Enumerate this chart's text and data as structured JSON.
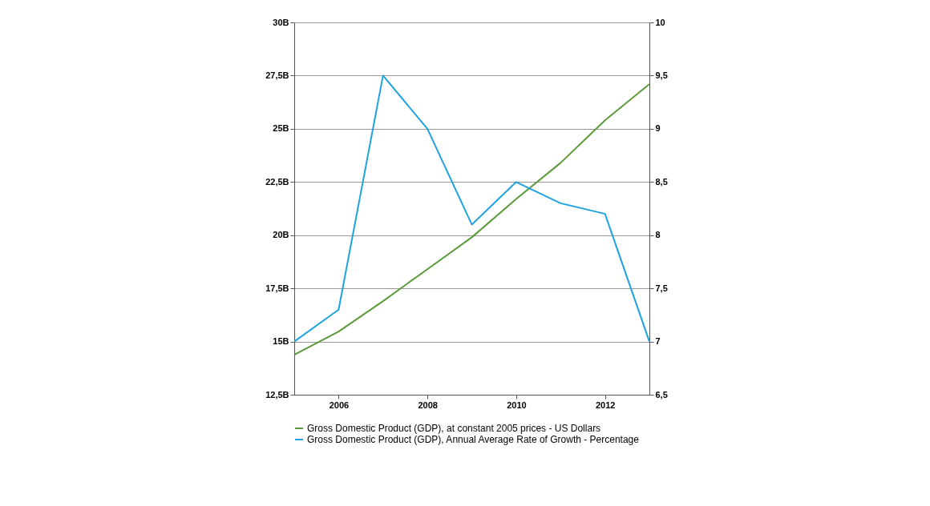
{
  "chart_data": {
    "type": "line",
    "x": [
      2005,
      2006,
      2007,
      2008,
      2009,
      2010,
      2011,
      2012,
      2013
    ],
    "series": [
      {
        "name": "Gross Domestic Product (GDP), at constant 2005 prices - US Dollars",
        "color": "#5b9a3a",
        "values": [
          14380000000,
          15470000000,
          16900000000,
          18400000000,
          19900000000,
          21700000000,
          23400000000,
          25400000000,
          27100000000
        ]
      },
      {
        "name": "Gross Domestic Product (GDP), Annual Average Rate of Growth - Percentage",
        "color": "#1fa3e0",
        "axis": "y2",
        "values": [
          7.0,
          7.3,
          9.5,
          9.0,
          8.1,
          8.5,
          8.3,
          8.2,
          7.0
        ]
      }
    ],
    "xlim": [
      2005,
      2013
    ],
    "xticks": [
      2006,
      2008,
      2010,
      2012
    ],
    "ylim": [
      12500000000,
      30000000000
    ],
    "yticks": [
      {
        "value": 12500000000,
        "label": "12,5B"
      },
      {
        "value": 15000000000,
        "label": "15B"
      },
      {
        "value": 17500000000,
        "label": "17,5B"
      },
      {
        "value": 20000000000,
        "label": "20B"
      },
      {
        "value": 22500000000,
        "label": "22,5B"
      },
      {
        "value": 25000000000,
        "label": "25B"
      },
      {
        "value": 27500000000,
        "label": "27,5B"
      },
      {
        "value": 30000000000,
        "label": "30B"
      }
    ],
    "y2lim": [
      6.5,
      10
    ],
    "y2ticks": [
      {
        "value": 6.5,
        "label": "6,5"
      },
      {
        "value": 7,
        "label": "7"
      },
      {
        "value": 7.5,
        "label": "7,5"
      },
      {
        "value": 8,
        "label": "8"
      },
      {
        "value": 8.5,
        "label": "8,5"
      },
      {
        "value": 9,
        "label": "9"
      },
      {
        "value": 9.5,
        "label": "9,5"
      },
      {
        "value": 10,
        "label": "10"
      }
    ],
    "grid": "y",
    "legend": "bottom",
    "marker": "none",
    "line_style": "solid"
  }
}
